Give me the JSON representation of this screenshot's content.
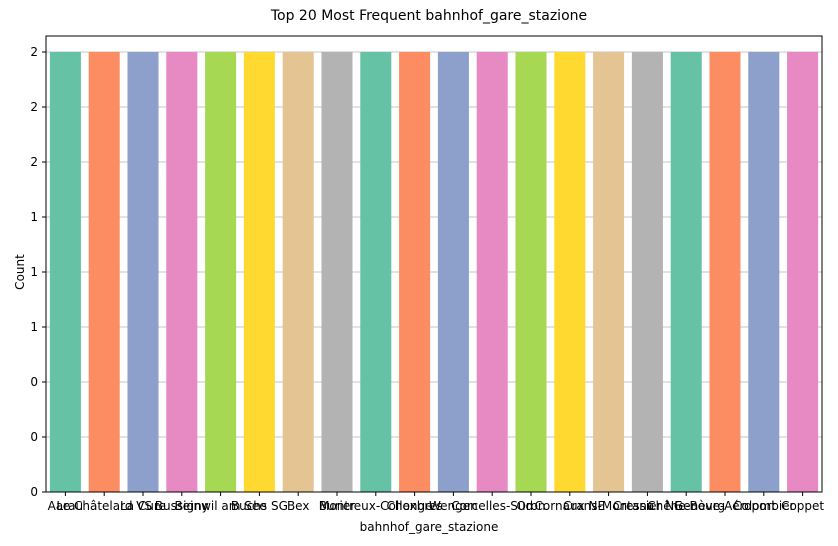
{
  "chart_data": {
    "type": "bar",
    "title": "Top 20 Most Frequent bahnhof_gare_stazione",
    "xlabel": "bahnhof_gare_stazione",
    "ylabel": "Count",
    "categories": [
      "Aarau",
      "Le Châtelard VS",
      "La Cure",
      "Bussigny",
      "Beinwil am See",
      "Buchs SG",
      "Bex",
      "Burier",
      "Montreux-Collonge",
      "Chexbres",
      "Wengen",
      "Corcelles-Sud",
      "Oron",
      "Cornaux NE",
      "Crans-Montana",
      "Cressier NE",
      "Chêne-Bourg",
      "Genève-Aéroport",
      "Colombier",
      "Coppet"
    ],
    "values": [
      2,
      2,
      2,
      2,
      2,
      2,
      2,
      2,
      2,
      2,
      2,
      2,
      2,
      2,
      2,
      2,
      2,
      2,
      2,
      2
    ],
    "ylim": [
      0,
      2
    ],
    "yticks": [
      0,
      0.25,
      0.5,
      0.75,
      1.0,
      1.25,
      1.5,
      1.75,
      2.0
    ],
    "ytick_labels": [
      "0",
      "0",
      "0",
      "1",
      "1",
      "1",
      "2",
      "2",
      "2"
    ],
    "grid": true,
    "colors": [
      "#66c2a5",
      "#fc8d62",
      "#8da0cb",
      "#e78ac3",
      "#a6d854",
      "#ffd92f",
      "#e5c494",
      "#b3b3b3"
    ]
  }
}
